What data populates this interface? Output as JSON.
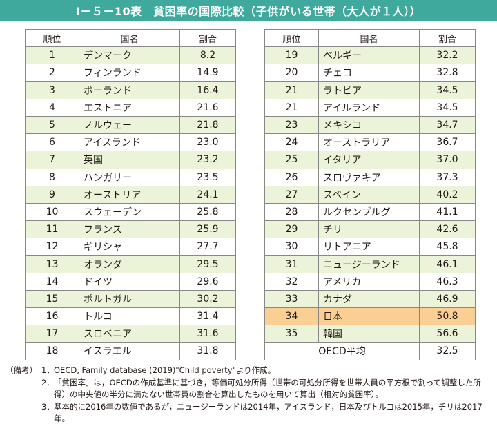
{
  "title": "Ⅰ－５－10表　貧困率の国際比較（子供がいる世帯（大人が１人））",
  "headers": {
    "rank": "順位",
    "country": "国名",
    "rate": "割合"
  },
  "left_rows": [
    {
      "rank": "1",
      "country": "デンマーク",
      "value": "8.2"
    },
    {
      "rank": "2",
      "country": "フィンランド",
      "value": "14.9"
    },
    {
      "rank": "3",
      "country": "ポーランド",
      "value": "16.4"
    },
    {
      "rank": "4",
      "country": "エストニア",
      "value": "21.6"
    },
    {
      "rank": "5",
      "country": "ノルウェー",
      "value": "21.8"
    },
    {
      "rank": "6",
      "country": "アイスランド",
      "value": "23.0"
    },
    {
      "rank": "7",
      "country": "英国",
      "value": "23.2"
    },
    {
      "rank": "8",
      "country": "ハンガリー",
      "value": "23.5"
    },
    {
      "rank": "9",
      "country": "オーストリア",
      "value": "24.1"
    },
    {
      "rank": "10",
      "country": "スウェーデン",
      "value": "25.8"
    },
    {
      "rank": "11",
      "country": "フランス",
      "value": "25.9"
    },
    {
      "rank": "12",
      "country": "ギリシャ",
      "value": "27.7"
    },
    {
      "rank": "13",
      "country": "オランダ",
      "value": "29.5"
    },
    {
      "rank": "14",
      "country": "ドイツ",
      "value": "29.6"
    },
    {
      "rank": "15",
      "country": "ポルトガル",
      "value": "30.2"
    },
    {
      "rank": "16",
      "country": "トルコ",
      "value": "31.4"
    },
    {
      "rank": "17",
      "country": "スロベニア",
      "value": "31.6"
    },
    {
      "rank": "18",
      "country": "イスラエル",
      "value": "31.8"
    }
  ],
  "right_rows": [
    {
      "rank": "19",
      "country": "ベルギー",
      "value": "32.2"
    },
    {
      "rank": "20",
      "country": "チェコ",
      "value": "32.8"
    },
    {
      "rank": "21",
      "country": "ラトビア",
      "value": "34.5"
    },
    {
      "rank": "21",
      "country": "アイルランド",
      "value": "34.5"
    },
    {
      "rank": "23",
      "country": "メキシコ",
      "value": "34.7"
    },
    {
      "rank": "24",
      "country": "オーストラリア",
      "value": "36.7"
    },
    {
      "rank": "25",
      "country": "イタリア",
      "value": "37.0"
    },
    {
      "rank": "26",
      "country": "スロヴァキア",
      "value": "37.3"
    },
    {
      "rank": "27",
      "country": "スペイン",
      "value": "40.2"
    },
    {
      "rank": "28",
      "country": "ルクセンブルグ",
      "value": "41.1"
    },
    {
      "rank": "29",
      "country": "チリ",
      "value": "42.6"
    },
    {
      "rank": "30",
      "country": "リトアニア",
      "value": "45.8"
    },
    {
      "rank": "31",
      "country": "ニュージーランド",
      "value": "46.1"
    },
    {
      "rank": "32",
      "country": "アメリカ",
      "value": "46.3"
    },
    {
      "rank": "33",
      "country": "カナダ",
      "value": "46.9"
    },
    {
      "rank": "34",
      "country": "日本",
      "value": "50.8",
      "highlight": true
    },
    {
      "rank": "35",
      "country": "韓国",
      "value": "56.6"
    }
  ],
  "oecd_average": {
    "label": "OECD平均",
    "value": "32.5"
  },
  "highlight_color": "#fbcf94",
  "stripe_color": "#ebf4d8",
  "title_bar_color": "#3fa99e",
  "notes": {
    "heading": "（備考）",
    "items": [
      {
        "num": "1．",
        "text": "OECD, Family database (2019)\"Child poverty\"より作成。"
      },
      {
        "num": "2．",
        "text": "「貧困率」は，OECDの作成基準に基づき，等価可処分所得（世帯の可処分所得を世帯人員の平方根で割って調整した所得）の中央値の半分に満たない世帯員の割合を算出したものを用いて算出（相対的貧困率）。"
      },
      {
        "num": "3．",
        "text": "基本的に2016年の数値であるが，ニュージーランドは2014年，アイスランド，日本及びトルコは2015年，チリは2017年。"
      }
    ]
  }
}
